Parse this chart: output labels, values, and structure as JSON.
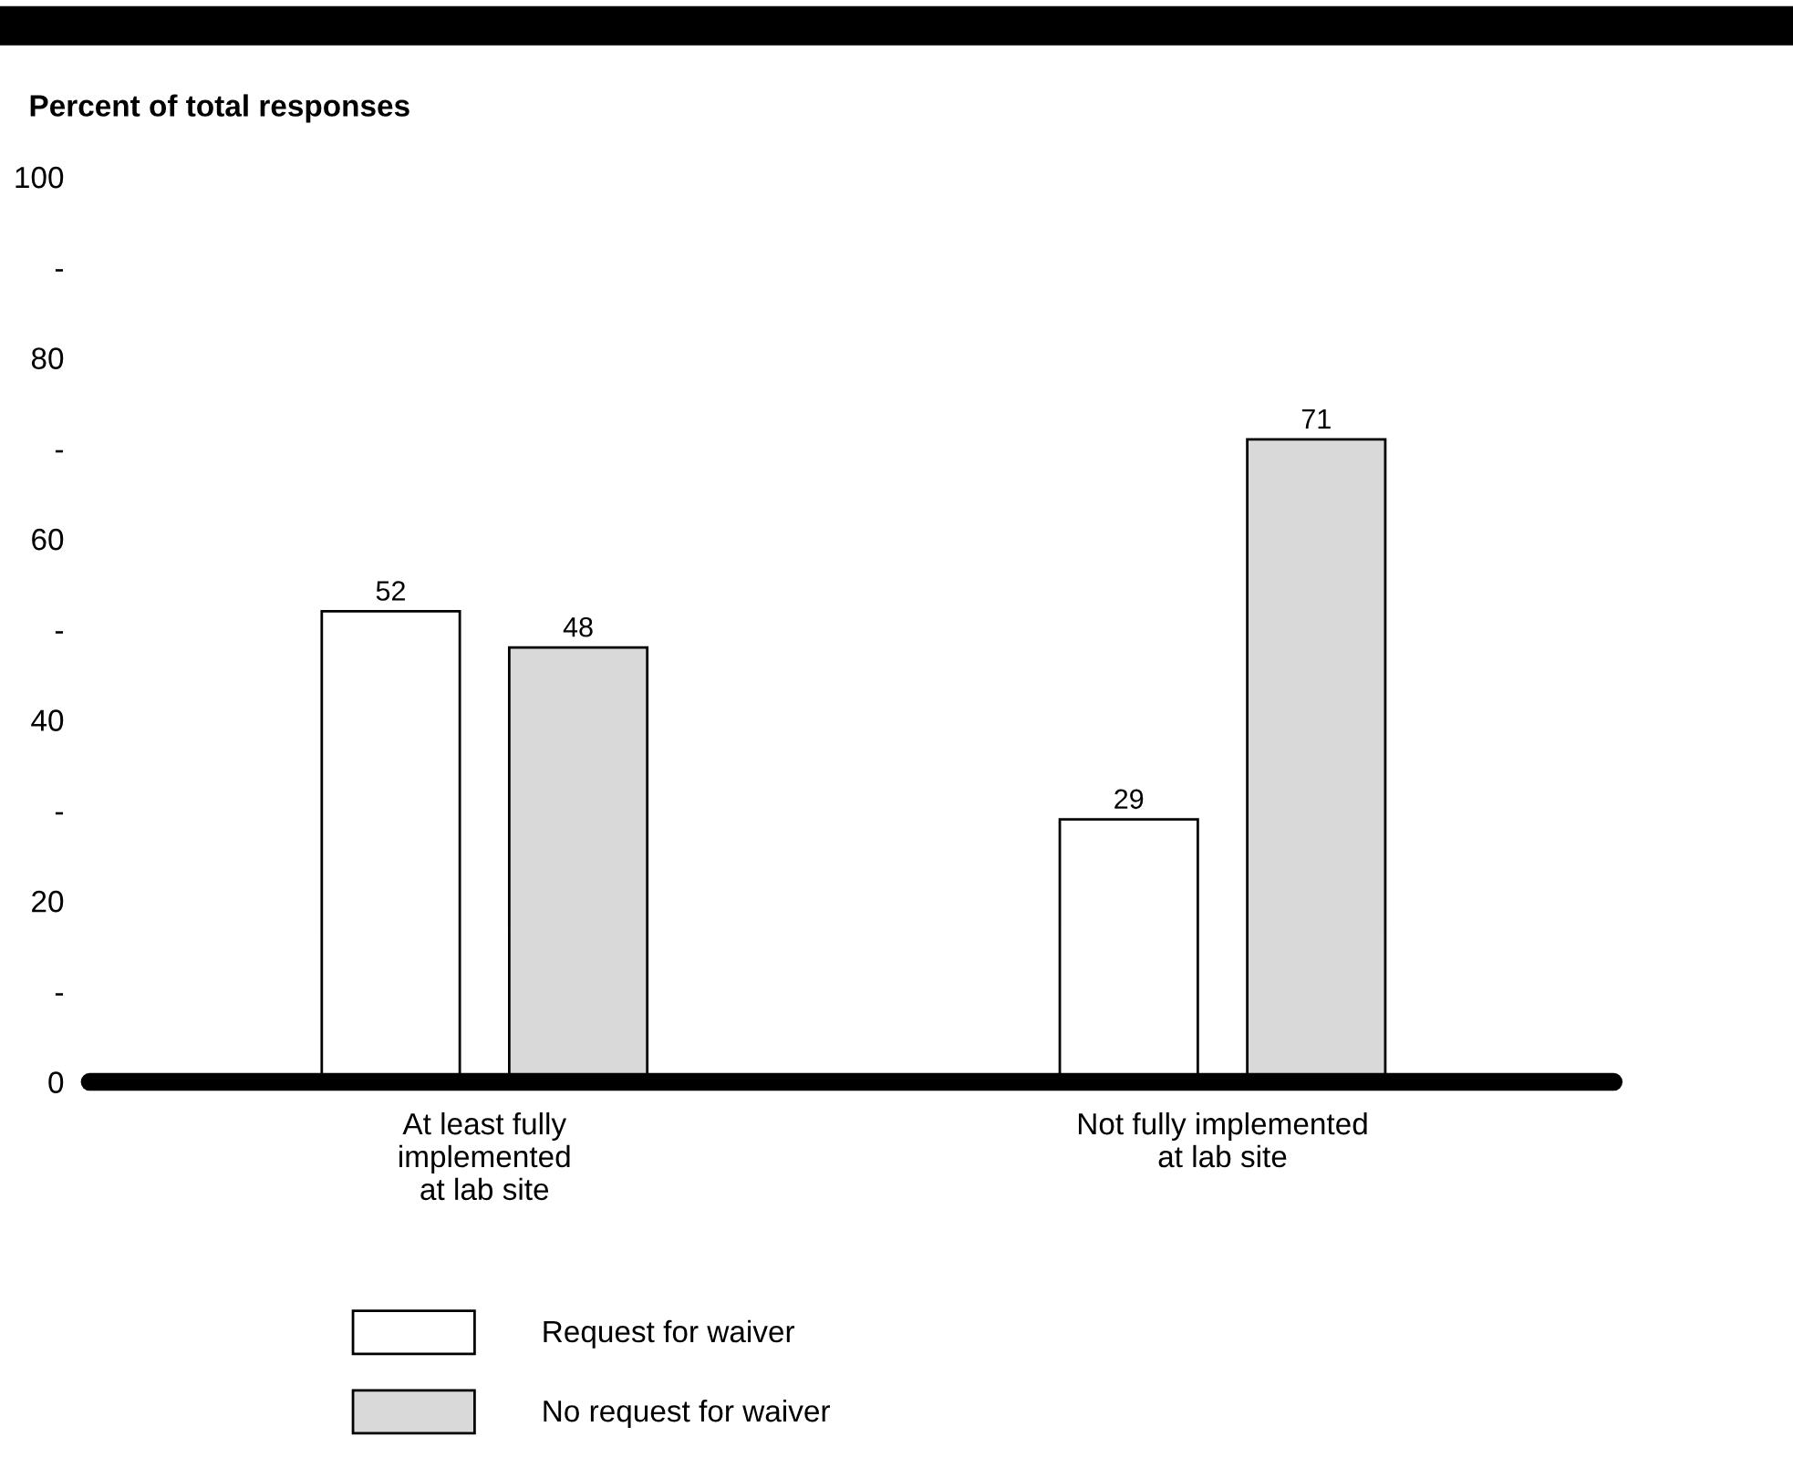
{
  "chart_data": {
    "type": "bar",
    "ylabel": "Percent of total responses",
    "categories": [
      "At least fully\nimplemented\nat lab site",
      "Not fully implemented\nat lab site"
    ],
    "series": [
      {
        "name": "Request for waiver",
        "color": "#ffffff",
        "values": [
          52,
          29
        ]
      },
      {
        "name": "No request for waiver",
        "color": "#d9d9d9",
        "values": [
          48,
          71
        ]
      }
    ],
    "ylim": [
      0,
      100
    ],
    "yticks": [
      0,
      {
        "value": 10,
        "label": "-"
      },
      20,
      {
        "value": 30,
        "label": "-"
      },
      40,
      {
        "value": 50,
        "label": "-"
      },
      60,
      {
        "value": 70,
        "label": "-"
      },
      80,
      {
        "value": 90,
        "label": "-"
      },
      100
    ],
    "data_labels": true,
    "grid": false,
    "legend": "bottom"
  }
}
